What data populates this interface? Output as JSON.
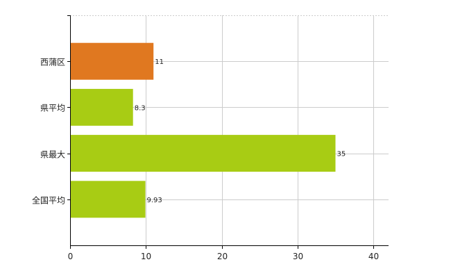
{
  "chart_data": {
    "type": "bar",
    "orientation": "horizontal",
    "categories": [
      "西蒲区",
      "県平均",
      "県最大",
      "全国平均"
    ],
    "values": [
      11,
      8.3,
      35,
      9.93
    ],
    "value_labels": [
      "11",
      "8.3",
      "35",
      "9.93"
    ],
    "colors": [
      "#e07820",
      "#a8cc14",
      "#a8cc14",
      "#a8cc14"
    ],
    "xlim": [
      0,
      42
    ],
    "xticks": [
      0,
      10,
      20,
      30,
      40
    ],
    "grid": true,
    "gridline_color": "#cccccc",
    "axis_color": "#000000"
  }
}
